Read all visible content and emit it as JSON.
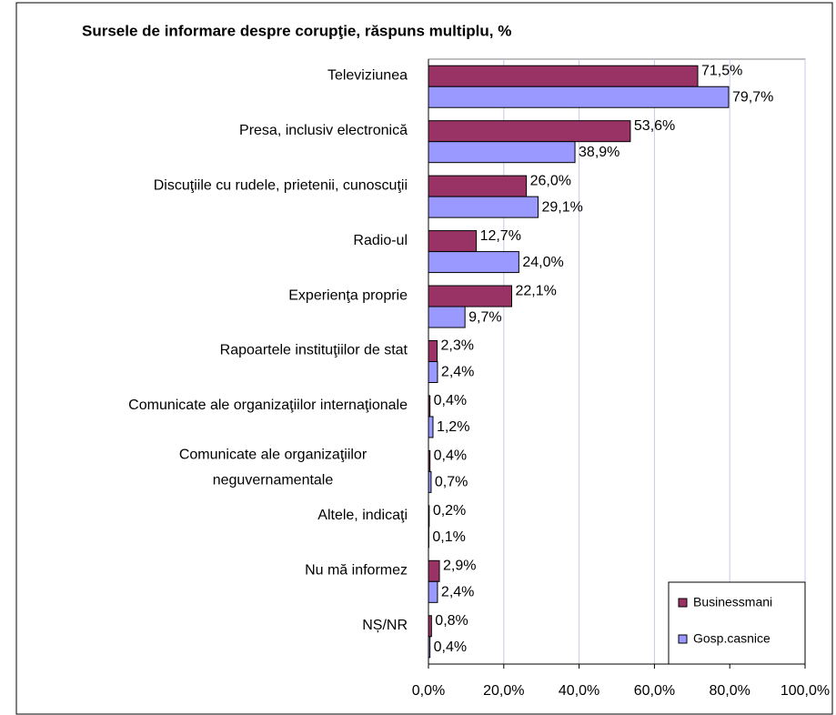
{
  "chart_data": {
    "type": "bar",
    "orientation": "horizontal",
    "title": "Sursele de informare despre corupţie, răspuns multiplu, %",
    "categories": [
      "Televiziunea",
      "Presa, inclusiv electronică",
      "Discuţiile cu rudele, prietenii, cunoscuţii",
      "Radio-ul",
      "Experienţa proprie",
      "Rapoartele instituţiilor de stat",
      "Comunicate ale organizaţiilor internaţionale",
      "Comunicate ale organizaţiilor neguvernamentale",
      "Altele, indicaţi",
      "Nu mă informez",
      "NȘ/NR"
    ],
    "series": [
      {
        "name": "Businessmani",
        "color": "#993366",
        "values": [
          71.5,
          53.6,
          26.0,
          12.7,
          22.1,
          2.3,
          0.4,
          0.4,
          0.2,
          2.9,
          0.8
        ],
        "value_labels": [
          "71,5%",
          "53,6%",
          "26,0%",
          "12,7%",
          "22,1%",
          "2,3%",
          "0,4%",
          "0,4%",
          "0,2%",
          "2,9%",
          "0,8%"
        ]
      },
      {
        "name": "Gosp.casnice",
        "color": "#9999ff",
        "values": [
          79.7,
          38.9,
          29.1,
          24.0,
          9.7,
          2.4,
          1.2,
          0.7,
          0.1,
          2.4,
          0.4
        ],
        "value_labels": [
          "79,7%",
          "38,9%",
          "29,1%",
          "24,0%",
          "9,7%",
          "2,4%",
          "1,2%",
          "0,7%",
          "0,1%",
          "2,4%",
          "0,4%"
        ]
      }
    ],
    "xlim": [
      0,
      100
    ],
    "xticks": [
      {
        "value": 0,
        "label": "0,0%"
      },
      {
        "value": 20,
        "label": "20,0%"
      },
      {
        "value": 40,
        "label": "40,0%"
      },
      {
        "value": 60,
        "label": "60,0%"
      },
      {
        "value": 80,
        "label": "80,0%"
      },
      {
        "value": 100,
        "label": "100,0%"
      }
    ],
    "grid": true,
    "legend": "lower right"
  }
}
